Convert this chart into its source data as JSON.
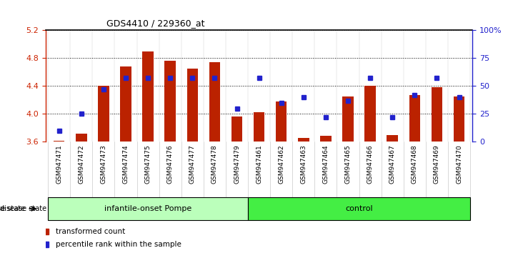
{
  "title": "GDS4410 / 229360_at",
  "samples": [
    "GSM947471",
    "GSM947472",
    "GSM947473",
    "GSM947474",
    "GSM947475",
    "GSM947476",
    "GSM947477",
    "GSM947478",
    "GSM947479",
    "GSM947461",
    "GSM947462",
    "GSM947463",
    "GSM947464",
    "GSM947465",
    "GSM947466",
    "GSM947467",
    "GSM947468",
    "GSM947469",
    "GSM947470"
  ],
  "bar_values": [
    3.61,
    3.72,
    4.4,
    4.68,
    4.9,
    4.76,
    4.65,
    4.74,
    3.96,
    4.02,
    4.18,
    3.65,
    3.68,
    4.25,
    4.4,
    3.7,
    4.27,
    4.38,
    4.25
  ],
  "dot_values_pct": [
    10,
    25,
    47,
    57,
    57,
    57,
    57,
    57,
    30,
    57,
    35,
    40,
    22,
    37,
    57,
    22,
    42,
    57,
    40
  ],
  "groups": [
    {
      "label": "infantile-onset Pompe",
      "start": 0,
      "end": 9,
      "color": "#bbffbb"
    },
    {
      "label": "control",
      "start": 9,
      "end": 19,
      "color": "#44ee44"
    }
  ],
  "ylim_left": [
    3.6,
    5.2
  ],
  "ylim_right": [
    0,
    100
  ],
  "yticks_left": [
    3.6,
    4.0,
    4.4,
    4.8,
    5.2
  ],
  "yticks_right": [
    0,
    25,
    50,
    75,
    100
  ],
  "bar_color": "#bb2200",
  "dot_color": "#2222cc",
  "title_color": "#000000",
  "left_axis_color": "#cc2200",
  "right_axis_color": "#2222cc",
  "grid_color": "#000000",
  "background_color": "#ffffff",
  "plot_bg_color": "#ffffff",
  "xtick_bg_color": "#dddddd",
  "group_border_color": "#000000",
  "n_pompe": 9,
  "n_total": 19
}
